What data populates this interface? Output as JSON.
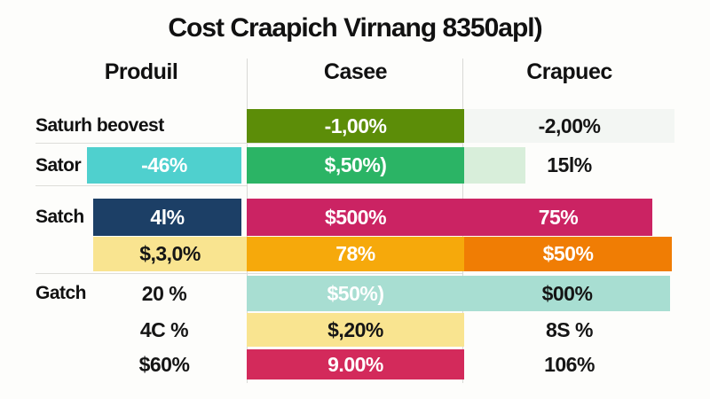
{
  "title": "Cost Craapich Virnang 8350apl)",
  "columns": [
    {
      "label": "Produil"
    },
    {
      "label": "Casee"
    },
    {
      "label": "Crapuec"
    }
  ],
  "rows": [
    {
      "label": "Saturh beovest",
      "c2": {
        "text": "-1,00%",
        "bg": "#5c8d08"
      },
      "c3": {
        "text": "-2,00%",
        "bg": "#f3f6f3"
      }
    },
    {
      "label": "Sator",
      "c1": {
        "text": "-46%",
        "bg": "#4fd0ce"
      },
      "c2": {
        "text": "$,50%)",
        "bg": "#2bb465"
      },
      "c3": {
        "text": "15l%",
        "bg": "#f3f7f4",
        "bar_bg": "#d8eeda"
      }
    },
    {
      "label": "Satch",
      "c1": {
        "text": "4l%",
        "bg": "#1c3f66"
      },
      "c2": {
        "text": "$500%",
        "bg": "#cb2363"
      },
      "c3": {
        "text": "75%",
        "bg": "#cb2363"
      }
    },
    {
      "label": "",
      "c1": {
        "text": "$,3,0%",
        "bg": "#f9e490"
      },
      "c2": {
        "text": "78%",
        "bg": "#f6a90b"
      },
      "c3": {
        "text": "$50%",
        "bg": "#f07d04"
      }
    },
    {
      "label": "Gatch",
      "c1": {
        "text": "20 %"
      },
      "c2": {
        "text": "$50%)",
        "bg": "#a8ded2"
      },
      "c3": {
        "text": "$00%",
        "bg": "#a8ded2"
      }
    },
    {
      "label": "",
      "c1": {
        "text": "4C %"
      },
      "c2": {
        "text": "$,20%",
        "bg": "#f9e490"
      },
      "c3": {
        "text": "8S %"
      }
    },
    {
      "label": "",
      "c1": {
        "text": "$60%"
      },
      "c2": {
        "text": "9.00%",
        "bg": "#d32a5b"
      },
      "c3": {
        "text": "106%"
      }
    }
  ],
  "chart_data": {
    "type": "table",
    "title": "Cost Craapich Virnang 8350apl)",
    "columns": [
      "Produil",
      "Casee",
      "Crapuec"
    ],
    "rows": [
      {
        "label": "Saturh beovest",
        "values": [
          "",
          "-1,00%",
          "-2,00%"
        ]
      },
      {
        "label": "Sator",
        "values": [
          "-46%",
          "$,50%)",
          "15l%"
        ]
      },
      {
        "label": "Satch",
        "values": [
          "4l%",
          "$500%",
          "75%"
        ]
      },
      {
        "label": "",
        "values": [
          "$,3,0%",
          "78%",
          "$50%"
        ]
      },
      {
        "label": "Gatch",
        "values": [
          "20 %",
          "$50%)",
          "$00%"
        ]
      },
      {
        "label": "",
        "values": [
          "4C %",
          "$,20%",
          "8S %"
        ]
      },
      {
        "label": "",
        "values": [
          "$60%",
          "9.00%",
          "106%"
        ]
      }
    ],
    "cell_colors": {
      "olive_green": "#5c8d08",
      "green": "#2bb465",
      "cyan": "#4fd0ce",
      "navy": "#1c3f66",
      "pink": "#cb2363",
      "crimson": "#d32a5b",
      "amber": "#f6a90b",
      "orange": "#f07d04",
      "pale_yellow": "#f9e490",
      "light_teal": "#a8ded2",
      "light_green": "#d8eeda"
    },
    "legend_position": "none",
    "grid": "partial-separators"
  }
}
